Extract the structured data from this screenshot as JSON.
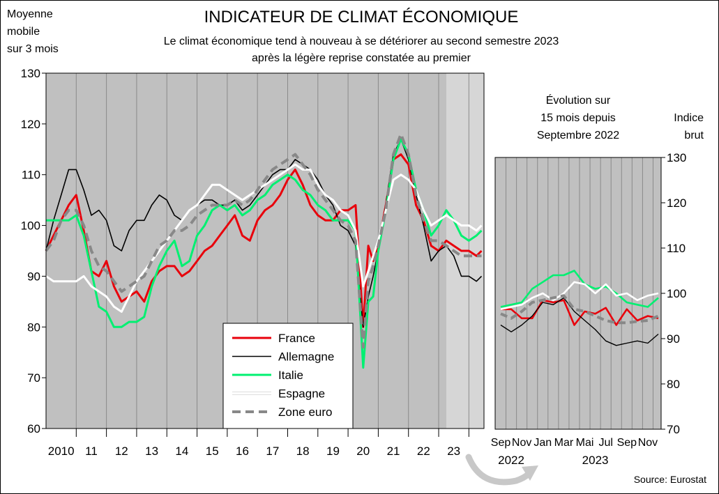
{
  "chart_data": [
    {
      "type": "line",
      "title": "INDICATEUR DE CLIMAT ÉCONOMIQUE",
      "subtitle": [
        "Le climat économique tend à nouveau à se détériorer au second semestre 2023",
        "après la légère reprise constatée au premier"
      ],
      "ylabel": [
        "Moyenne",
        "mobile",
        "sur 3 mois"
      ],
      "ylim": [
        60,
        130
      ],
      "yticks": [
        60,
        70,
        80,
        90,
        100,
        110,
        120,
        130
      ],
      "xlim": [
        2009.5,
        2024.0
      ],
      "xtick_labels": [
        {
          "label": "2010",
          "x": 2010.0
        },
        {
          "label": "11",
          "x": 2011.0
        },
        {
          "label": "12",
          "x": 2012.0
        },
        {
          "label": "13",
          "x": 2013.0
        },
        {
          "label": "14",
          "x": 2014.0
        },
        {
          "label": "15",
          "x": 2015.0
        },
        {
          "label": "16",
          "x": 2016.0
        },
        {
          "label": "17",
          "x": 2017.0
        },
        {
          "label": "18",
          "x": 2018.0
        },
        {
          "label": "19",
          "x": 2019.0
        },
        {
          "label": "20",
          "x": 2020.0
        },
        {
          "label": "21",
          "x": 2021.0
        },
        {
          "label": "22",
          "x": 2022.0
        },
        {
          "label": "23",
          "x": 2023.0
        }
      ],
      "grid": "vertical",
      "legend_position": "bottom-center",
      "series": [
        {
          "name": "France",
          "color": "#e8000b",
          "style": "solid",
          "x": [
            2009.5,
            2009.75,
            2010.0,
            2010.25,
            2010.5,
            2010.75,
            2011.0,
            2011.25,
            2011.5,
            2011.75,
            2012.0,
            2012.25,
            2012.5,
            2012.75,
            2013.0,
            2013.25,
            2013.5,
            2013.75,
            2014.0,
            2014.25,
            2014.5,
            2014.75,
            2015.0,
            2015.25,
            2015.5,
            2015.75,
            2016.0,
            2016.25,
            2016.5,
            2016.75,
            2017.0,
            2017.25,
            2017.5,
            2017.75,
            2018.0,
            2018.25,
            2018.5,
            2018.75,
            2019.0,
            2019.25,
            2019.5,
            2019.75,
            2020.0,
            2020.17,
            2020.33,
            2020.5,
            2020.75,
            2021.0,
            2021.25,
            2021.5,
            2021.75,
            2022.0,
            2022.25,
            2022.5,
            2022.75,
            2023.0,
            2023.25,
            2023.5,
            2023.75,
            2023.92
          ],
          "y": [
            95,
            98,
            101,
            104,
            106,
            99,
            91,
            90,
            93,
            88,
            85,
            86,
            87,
            85,
            89,
            91,
            92,
            92,
            90,
            91,
            93,
            95,
            96,
            98,
            100,
            102,
            98,
            97,
            101,
            103,
            104,
            106,
            109,
            111,
            108,
            104,
            102,
            101,
            101,
            103,
            103,
            104,
            80,
            96,
            93,
            96,
            104,
            113,
            114,
            112,
            104,
            101,
            96,
            95,
            97,
            96,
            95,
            95,
            94,
            95
          ]
        },
        {
          "name": "Allemagne",
          "color": "#000000",
          "style": "solid",
          "x": [
            2009.5,
            2009.75,
            2010.0,
            2010.25,
            2010.5,
            2010.75,
            2011.0,
            2011.25,
            2011.5,
            2011.75,
            2012.0,
            2012.25,
            2012.5,
            2012.75,
            2013.0,
            2013.25,
            2013.5,
            2013.75,
            2014.0,
            2014.25,
            2014.5,
            2014.75,
            2015.0,
            2015.25,
            2015.5,
            2015.75,
            2016.0,
            2016.25,
            2016.5,
            2016.75,
            2017.0,
            2017.25,
            2017.5,
            2017.75,
            2018.0,
            2018.25,
            2018.5,
            2018.75,
            2019.0,
            2019.25,
            2019.5,
            2019.75,
            2020.0,
            2020.17,
            2020.33,
            2020.5,
            2020.75,
            2021.0,
            2021.25,
            2021.5,
            2021.75,
            2022.0,
            2022.25,
            2022.5,
            2022.75,
            2023.0,
            2023.25,
            2023.5,
            2023.75,
            2023.92
          ],
          "y": [
            95,
            101,
            106,
            111,
            111,
            107,
            102,
            103,
            101,
            96,
            95,
            99,
            101,
            101,
            104,
            106,
            105,
            102,
            101,
            103,
            104,
            105,
            105,
            104,
            104,
            105,
            103,
            104,
            106,
            108,
            110,
            111,
            111,
            113,
            112,
            111,
            109,
            106,
            104,
            100,
            99,
            96,
            80,
            86,
            90,
            95,
            104,
            114,
            117,
            113,
            106,
            100,
            93,
            95,
            96,
            94,
            90,
            90,
            89,
            90
          ]
        },
        {
          "name": "Italie",
          "color": "#00f071",
          "style": "solid",
          "x": [
            2009.5,
            2009.75,
            2010.0,
            2010.25,
            2010.5,
            2010.75,
            2011.0,
            2011.25,
            2011.5,
            2011.75,
            2012.0,
            2012.25,
            2012.5,
            2012.75,
            2013.0,
            2013.25,
            2013.5,
            2013.75,
            2014.0,
            2014.25,
            2014.5,
            2014.75,
            2015.0,
            2015.25,
            2015.5,
            2015.75,
            2016.0,
            2016.25,
            2016.5,
            2016.75,
            2017.0,
            2017.25,
            2017.5,
            2017.75,
            2018.0,
            2018.25,
            2018.5,
            2018.75,
            2019.0,
            2019.25,
            2019.5,
            2019.75,
            2020.0,
            2020.17,
            2020.33,
            2020.5,
            2020.75,
            2021.0,
            2021.25,
            2021.5,
            2021.75,
            2022.0,
            2022.25,
            2022.5,
            2022.75,
            2023.0,
            2023.25,
            2023.5,
            2023.75,
            2023.92
          ],
          "y": [
            101,
            101,
            101,
            101,
            102,
            98,
            91,
            84,
            83,
            80,
            80,
            81,
            81,
            82,
            88,
            92,
            95,
            97,
            92,
            93,
            98,
            100,
            103,
            104,
            103,
            104,
            102,
            103,
            105,
            106,
            108,
            109,
            110,
            109,
            107,
            106,
            104,
            103,
            101,
            101,
            101,
            99,
            72,
            85,
            86,
            95,
            103,
            113,
            117,
            114,
            107,
            103,
            98,
            100,
            103,
            101,
            98,
            97,
            98,
            99
          ]
        },
        {
          "name": "Espagne",
          "color": "#ffffff",
          "style": "solid",
          "x": [
            2009.5,
            2009.75,
            2010.0,
            2010.25,
            2010.5,
            2010.75,
            2011.0,
            2011.25,
            2011.5,
            2011.75,
            2012.0,
            2012.25,
            2012.5,
            2012.75,
            2013.0,
            2013.25,
            2013.5,
            2013.75,
            2014.0,
            2014.25,
            2014.5,
            2014.75,
            2015.0,
            2015.25,
            2015.5,
            2015.75,
            2016.0,
            2016.25,
            2016.5,
            2016.75,
            2017.0,
            2017.25,
            2017.5,
            2017.75,
            2018.0,
            2018.25,
            2018.5,
            2018.75,
            2019.0,
            2019.25,
            2019.5,
            2019.75,
            2020.0,
            2020.17,
            2020.33,
            2020.5,
            2020.75,
            2021.0,
            2021.25,
            2021.5,
            2021.75,
            2022.0,
            2022.25,
            2022.5,
            2022.75,
            2023.0,
            2023.25,
            2023.5,
            2023.75,
            2023.92
          ],
          "y": [
            90,
            89,
            89,
            89,
            89,
            90,
            88,
            87,
            86,
            84,
            83,
            86,
            89,
            91,
            93,
            95,
            97,
            99,
            101,
            103,
            104,
            106,
            108,
            108,
            107,
            106,
            105,
            106,
            107,
            108,
            109,
            110,
            111,
            112,
            111,
            111,
            108,
            106,
            105,
            103,
            102,
            99,
            88,
            91,
            94,
            97,
            103,
            109,
            110,
            109,
            107,
            103,
            100,
            101,
            102,
            101,
            100,
            100,
            99,
            100
          ]
        },
        {
          "name": "Zone euro",
          "color": "#888888",
          "style": "dashed",
          "x": [
            2009.5,
            2009.75,
            2010.0,
            2010.25,
            2010.5,
            2010.75,
            2011.0,
            2011.25,
            2011.5,
            2011.75,
            2012.0,
            2012.25,
            2012.5,
            2012.75,
            2013.0,
            2013.25,
            2013.5,
            2013.75,
            2014.0,
            2014.25,
            2014.5,
            2014.75,
            2015.0,
            2015.25,
            2015.5,
            2015.75,
            2016.0,
            2016.25,
            2016.5,
            2016.75,
            2017.0,
            2017.25,
            2017.5,
            2017.75,
            2018.0,
            2018.25,
            2018.5,
            2018.75,
            2019.0,
            2019.25,
            2019.5,
            2019.75,
            2020.0,
            2020.17,
            2020.33,
            2020.5,
            2020.75,
            2021.0,
            2021.25,
            2021.5,
            2021.75,
            2022.0,
            2022.25,
            2022.5,
            2022.75,
            2023.0,
            2023.25,
            2023.5,
            2023.75,
            2023.92
          ],
          "y": [
            95,
            97,
            101,
            103,
            103,
            100,
            95,
            92,
            91,
            89,
            87,
            88,
            89,
            90,
            93,
            96,
            97,
            99,
            99,
            100,
            102,
            103,
            104,
            104,
            104,
            105,
            104,
            105,
            107,
            109,
            111,
            112,
            113,
            114,
            112,
            110,
            107,
            105,
            103,
            101,
            100,
            97,
            76,
            89,
            92,
            96,
            103,
            114,
            118,
            114,
            106,
            101,
            97,
            97,
            96,
            95,
            94,
            94,
            94,
            94
          ]
        }
      ]
    },
    {
      "type": "line",
      "title": [
        "Évolution sur",
        "15 mois depuis",
        "Septembre 2022"
      ],
      "ylabel": [
        "Indice",
        "brut"
      ],
      "ylim": [
        70,
        130
      ],
      "yticks": [
        70,
        80,
        90,
        100,
        110,
        120,
        130
      ],
      "x_months": [
        "2022-09",
        "2022-10",
        "2022-11",
        "2022-12",
        "2023-01",
        "2023-02",
        "2023-03",
        "2023-04",
        "2023-05",
        "2023-06",
        "2023-07",
        "2023-08",
        "2023-09",
        "2023-10",
        "2023-11",
        "2023-12"
      ],
      "xtick_labels": [
        {
          "label": "Sep",
          "x": "2022-09"
        },
        {
          "label": "Nov",
          "x": "2022-11"
        },
        {
          "label": "Jan",
          "x": "2023-01"
        },
        {
          "label": "Mar",
          "x": "2023-03"
        },
        {
          "label": "Mai",
          "x": "2023-05"
        },
        {
          "label": "Jul",
          "x": "2023-07"
        },
        {
          "label": "Sep",
          "x": "2023-09"
        },
        {
          "label": "Nov",
          "x": "2023-11"
        }
      ],
      "year_labels": [
        {
          "label": "2022",
          "x": "2022-10"
        },
        {
          "label": "2023",
          "x": "2023-06"
        }
      ],
      "grid": "vertical",
      "series": [
        {
          "name": "France",
          "color": "#e8000b",
          "style": "solid",
          "x_index": [
            0,
            1,
            2,
            3,
            4,
            5,
            6,
            7,
            8,
            9,
            10,
            11,
            12,
            13,
            14,
            15
          ],
          "y": [
            96.5,
            96.5,
            94.5,
            94.5,
            98.5,
            98,
            98.5,
            93,
            96,
            95.5,
            96.8,
            93,
            96.5,
            94,
            95,
            94.5
          ]
        },
        {
          "name": "Allemagne",
          "color": "#000000",
          "style": "solid",
          "x_index": [
            0,
            1,
            2,
            3,
            4,
            5,
            6,
            7,
            8,
            9,
            10,
            11,
            12,
            13,
            14,
            15
          ],
          "y": [
            93,
            91.5,
            93,
            95,
            98,
            97.5,
            99,
            96,
            94,
            92,
            89.5,
            88.5,
            89,
            89.5,
            89,
            91
          ]
        },
        {
          "name": "Italie",
          "color": "#00f071",
          "style": "solid",
          "x_index": [
            0,
            1,
            2,
            3,
            4,
            5,
            6,
            7,
            8,
            9,
            10,
            11,
            12,
            13,
            14,
            15
          ],
          "y": [
            97,
            97.5,
            98,
            101,
            102.5,
            104,
            104,
            105,
            102,
            101,
            101.5,
            100,
            98,
            97.5,
            97,
            99
          ]
        },
        {
          "name": "Espagne",
          "color": "#ffffff",
          "style": "solid",
          "x_index": [
            0,
            1,
            2,
            3,
            4,
            5,
            6,
            7,
            8,
            9,
            10,
            11,
            12,
            13,
            14,
            15
          ],
          "y": [
            96.5,
            97,
            97.5,
            99,
            100,
            98.5,
            100,
            102.5,
            102,
            100,
            102,
            99.5,
            100,
            98.5,
            99.5,
            100
          ]
        },
        {
          "name": "Zone euro",
          "color": "#888888",
          "style": "dashed",
          "x_index": [
            0,
            1,
            2,
            3,
            4,
            5,
            6,
            7,
            8,
            9,
            10,
            11,
            12,
            13,
            14,
            15
          ],
          "y": [
            95.5,
            94.5,
            96,
            98,
            98.5,
            99,
            99.5,
            96.5,
            96,
            95,
            94,
            93.5,
            93.5,
            93.8,
            94,
            95
          ]
        }
      ]
    }
  ],
  "source": "Source: Eurostat"
}
